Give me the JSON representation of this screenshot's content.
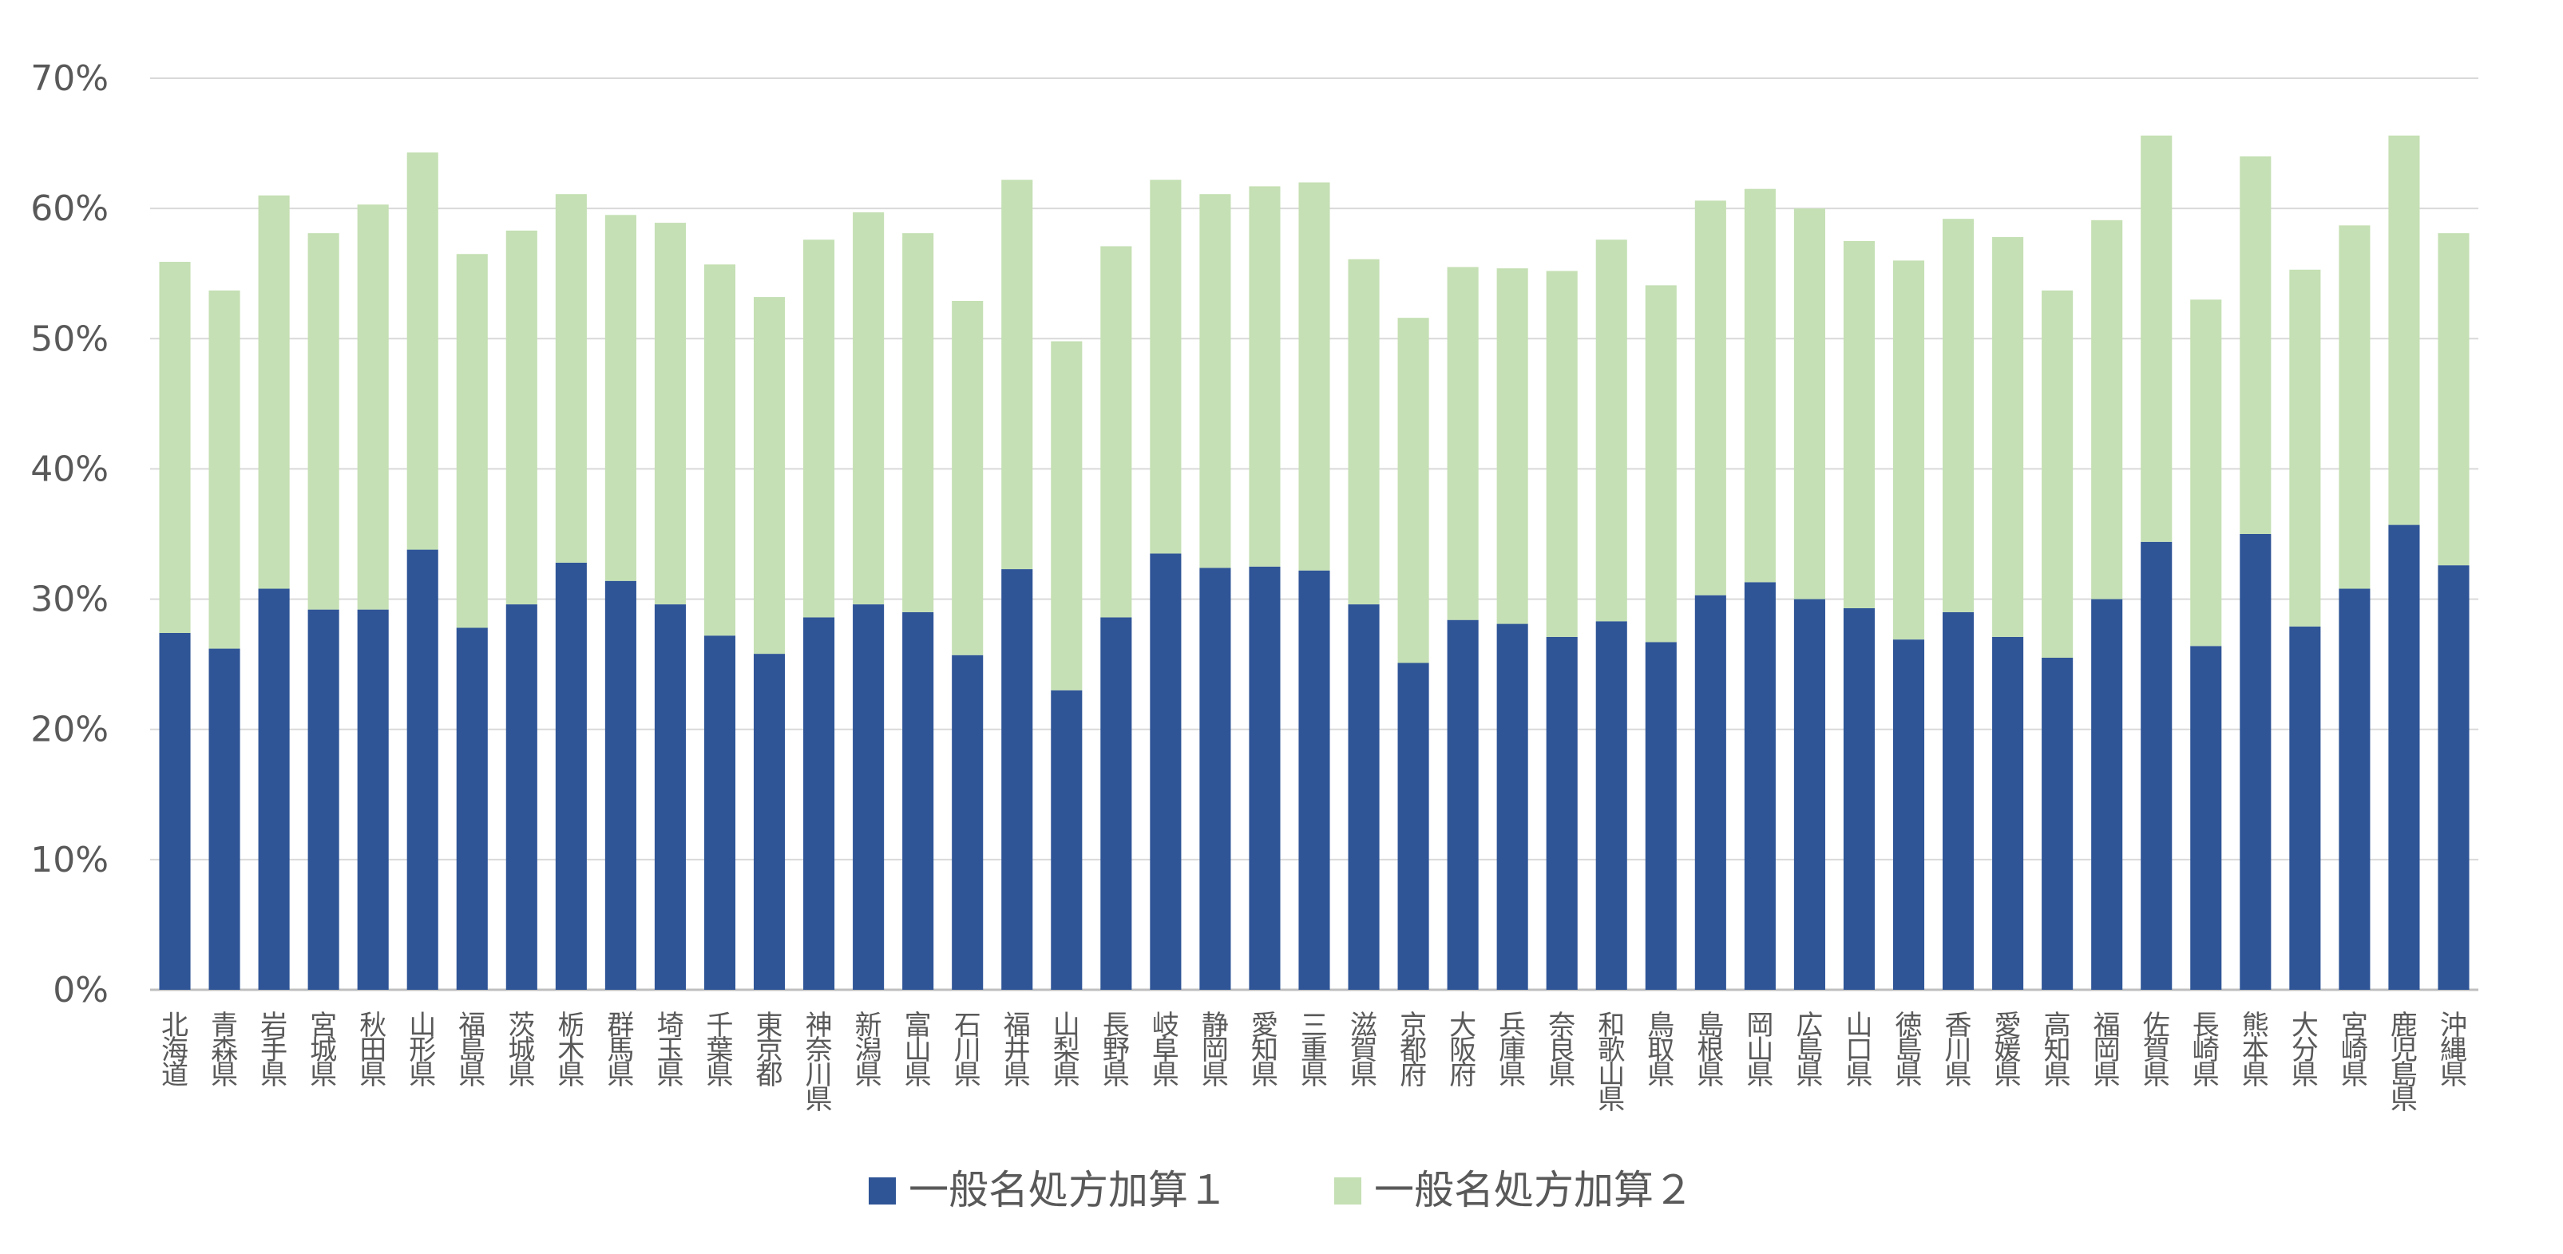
{
  "chart_data": {
    "type": "bar",
    "stacked": true,
    "categories": [
      "北海道",
      "青森県",
      "岩手県",
      "宮城県",
      "秋田県",
      "山形県",
      "福島県",
      "茨城県",
      "栃木県",
      "群馬県",
      "埼玉県",
      "千葉県",
      "東京都",
      "神奈川県",
      "新潟県",
      "富山県",
      "石川県",
      "福井県",
      "山梨県",
      "長野県",
      "岐阜県",
      "静岡県",
      "愛知県",
      "三重県",
      "滋賀県",
      "京都府",
      "大阪府",
      "兵庫県",
      "奈良県",
      "和歌山県",
      "鳥取県",
      "島根県",
      "岡山県",
      "広島県",
      "山口県",
      "徳島県",
      "香川県",
      "愛媛県",
      "高知県",
      "福岡県",
      "佐賀県",
      "長崎県",
      "熊本県",
      "大分県",
      "宮崎県",
      "鹿児島県",
      "沖縄県"
    ],
    "series": [
      {
        "name": "一般名処方加算１",
        "color": "#2F5597",
        "values": [
          27.4,
          26.2,
          30.8,
          29.2,
          29.2,
          33.8,
          27.8,
          29.6,
          32.8,
          31.4,
          29.6,
          27.2,
          25.8,
          28.6,
          29.6,
          29.0,
          25.7,
          32.3,
          23.0,
          28.6,
          33.5,
          32.4,
          32.5,
          32.2,
          29.6,
          25.1,
          28.4,
          28.1,
          27.1,
          28.3,
          26.7,
          30.3,
          31.3,
          30.0,
          29.3,
          26.9,
          29.0,
          27.1,
          25.5,
          30.0,
          34.4,
          26.4,
          35.0,
          27.9,
          30.8,
          35.7,
          32.6
        ]
      },
      {
        "name": "一般名処方加算２",
        "color": "#C5E0B4",
        "values": [
          28.5,
          27.5,
          30.2,
          28.9,
          31.1,
          30.5,
          28.7,
          28.7,
          28.3,
          28.1,
          29.3,
          28.5,
          27.4,
          29.0,
          30.1,
          29.1,
          27.2,
          29.9,
          26.8,
          28.5,
          28.7,
          28.7,
          29.2,
          29.8,
          26.5,
          26.5,
          27.1,
          27.3,
          28.1,
          29.3,
          27.4,
          30.3,
          30.2,
          30.0,
          28.2,
          29.1,
          30.2,
          30.7,
          28.2,
          29.1,
          31.2,
          26.6,
          29.0,
          27.4,
          27.9,
          29.9,
          25.5
        ]
      }
    ],
    "ylim": [
      0,
      70
    ],
    "yticks": [
      "0%",
      "10%",
      "20%",
      "30%",
      "40%",
      "50%",
      "60%",
      "70%"
    ],
    "grid": true,
    "legend_position": "bottom"
  }
}
